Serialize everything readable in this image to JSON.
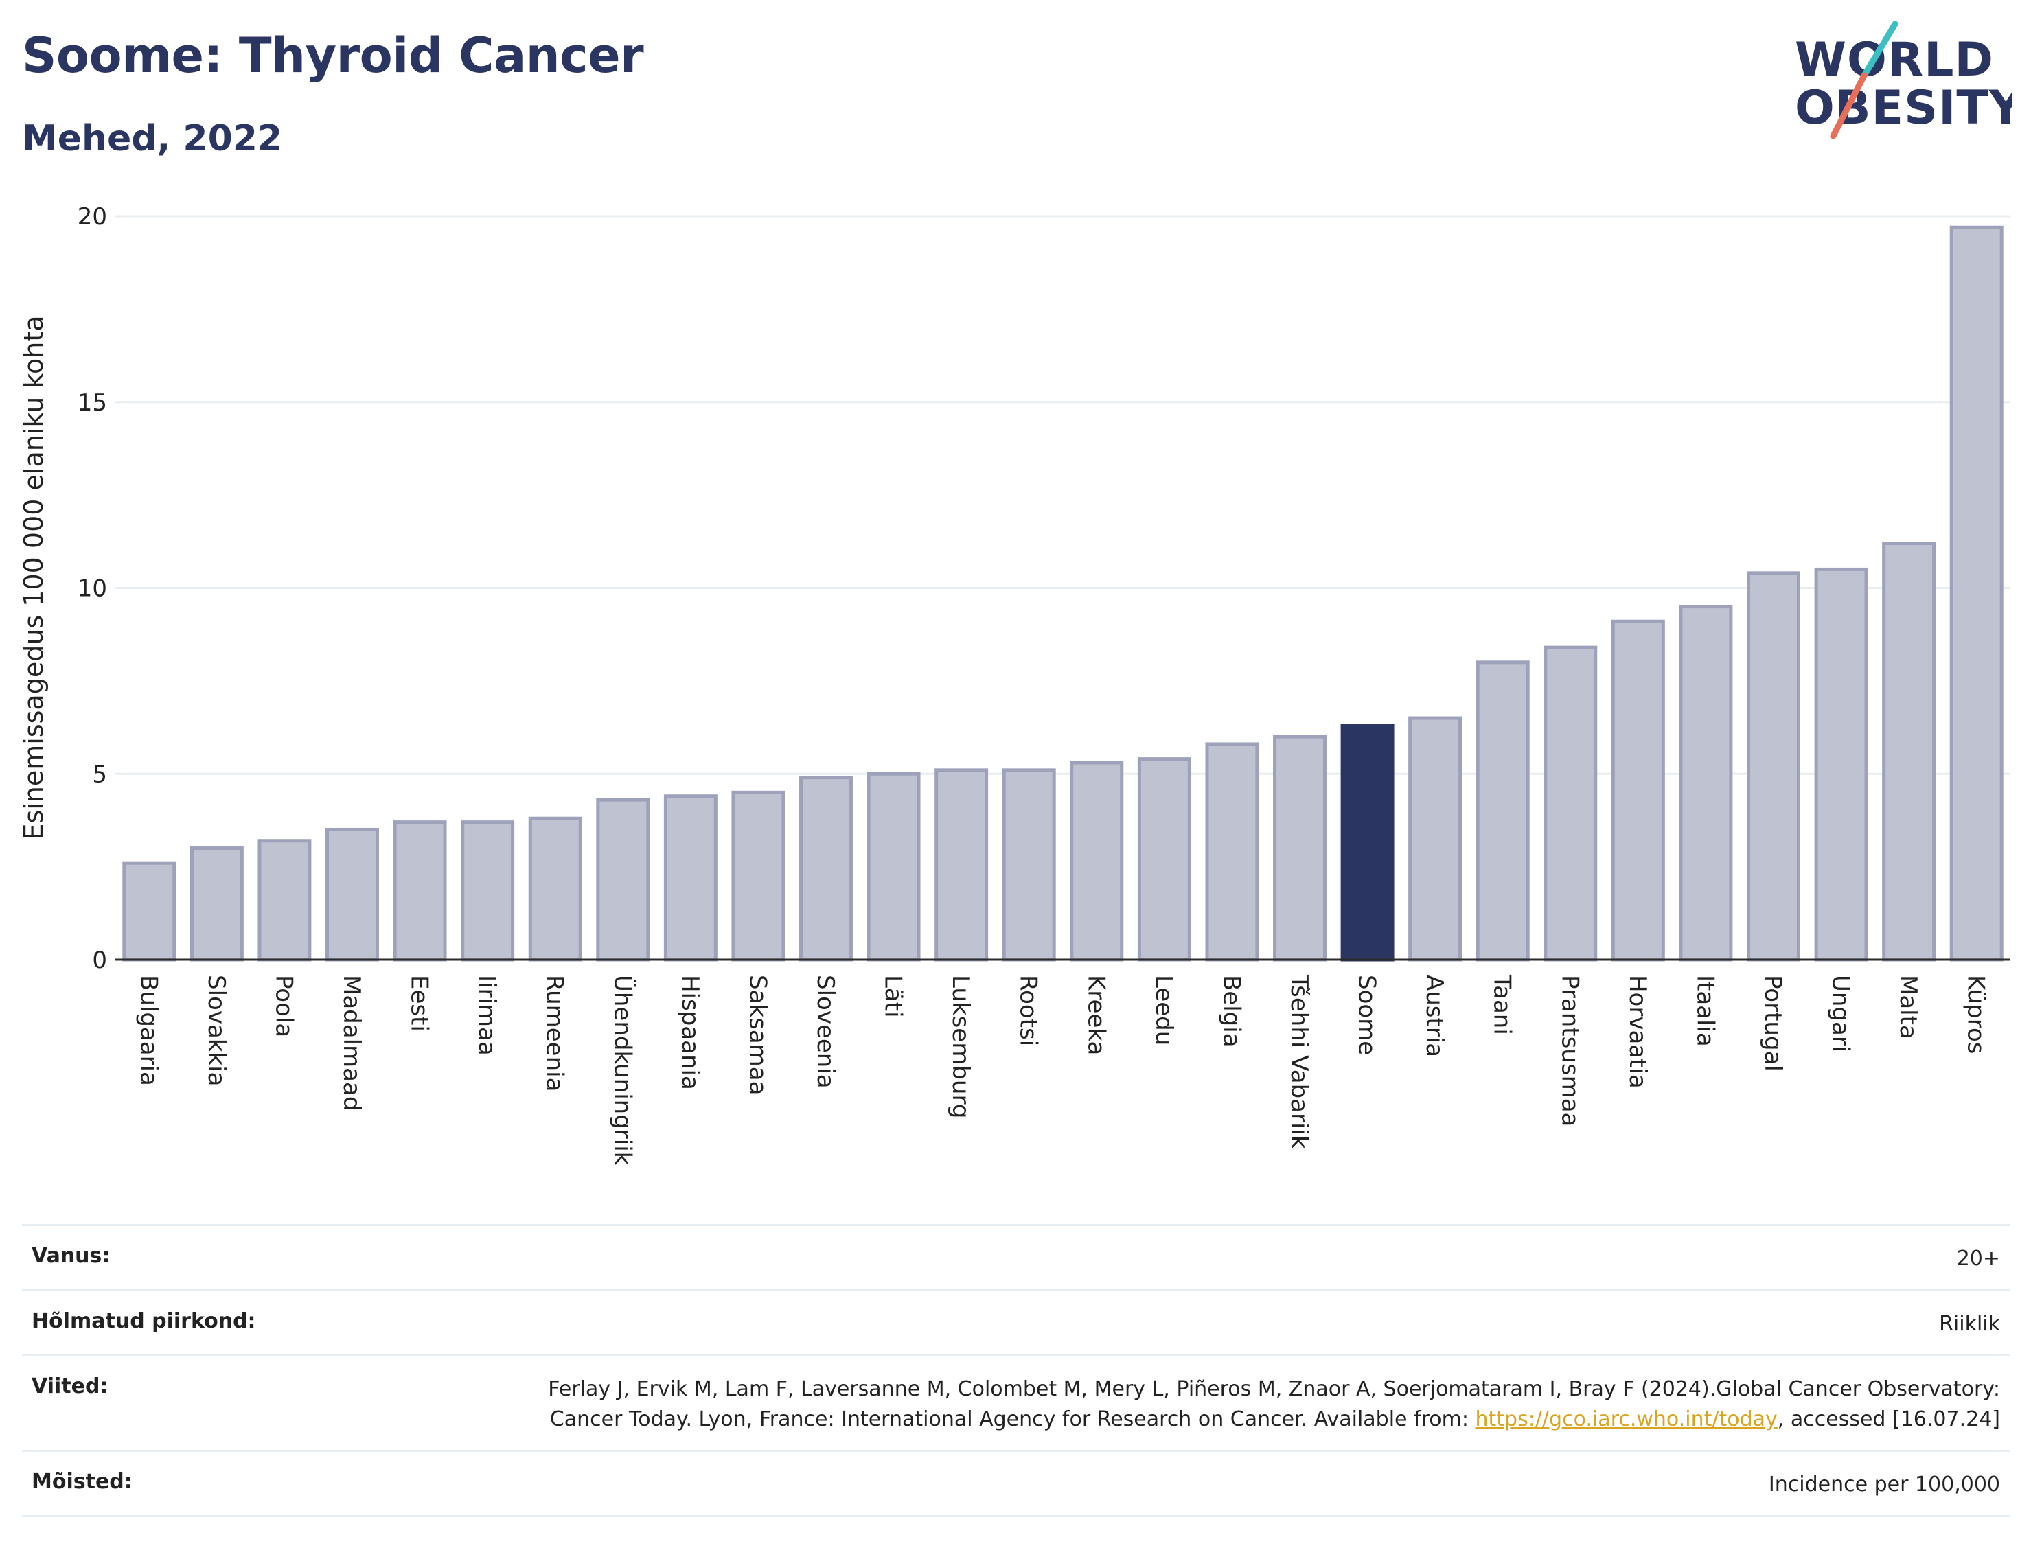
{
  "header": {
    "title": "Soome: Thyroid Cancer",
    "subtitle": "Mehed, 2022"
  },
  "logo": {
    "line1": "WORLD",
    "line2": "OBESITY",
    "accent_colors": [
      "#3bbfc3",
      "#e76f5a"
    ]
  },
  "chart_data": {
    "type": "bar",
    "ylabel": "Esinemissagedus 100 000 elaniku kohta",
    "ylim": [
      0,
      20
    ],
    "yticks": [
      0,
      5,
      10,
      15,
      20
    ],
    "grid": true,
    "highlight": "Soome",
    "colors": {
      "bar": "#bfc2d0",
      "bar_edge": "#9da1ba",
      "highlight": "#2b3561"
    },
    "categories": [
      "Bulgaaria",
      "Slovakkia",
      "Poola",
      "Madalmaad",
      "Eesti",
      "Iirimaa",
      "Rumeenia",
      "Ühendkuningriik",
      "Hispaania",
      "Saksamaa",
      "Sloveenia",
      "Läti",
      "Luksemburg",
      "Rootsi",
      "Kreeka",
      "Leedu",
      "Belgia",
      "Tšehhi Vabariik",
      "Soome",
      "Austria",
      "Taani",
      "Prantsusmaa",
      "Horvaatia",
      "Itaalia",
      "Portugal",
      "Ungari",
      "Malta",
      "Küpros"
    ],
    "values": [
      2.6,
      3.0,
      3.2,
      3.5,
      3.7,
      3.7,
      3.8,
      4.3,
      4.4,
      4.5,
      4.9,
      5.0,
      5.1,
      5.1,
      5.3,
      5.4,
      5.8,
      6.0,
      6.3,
      6.5,
      8.0,
      8.4,
      9.1,
      9.5,
      10.4,
      10.5,
      11.2,
      19.7
    ]
  },
  "info": {
    "age_label": "Vanus:",
    "age_value": "20+",
    "region_label": "Hõlmatud piirkond:",
    "region_value": "Riiklik",
    "refs_label": "Viited:",
    "refs_text_1": "Ferlay J, Ervik M, Lam F, Laversanne M, Colombet M, Mery L, Piñeros M, Znaor A, Soerjomataram I, Bray F (2024).Global Cancer Observatory: Cancer Today. Lyon, France: International Agency for Research on Cancer. Available from: ",
    "refs_link": "https://gco.iarc.who.int/today",
    "refs_text_2": ", accessed [16.07.24]",
    "defs_label": "Mõisted:",
    "defs_value": "Incidence per 100,000"
  }
}
